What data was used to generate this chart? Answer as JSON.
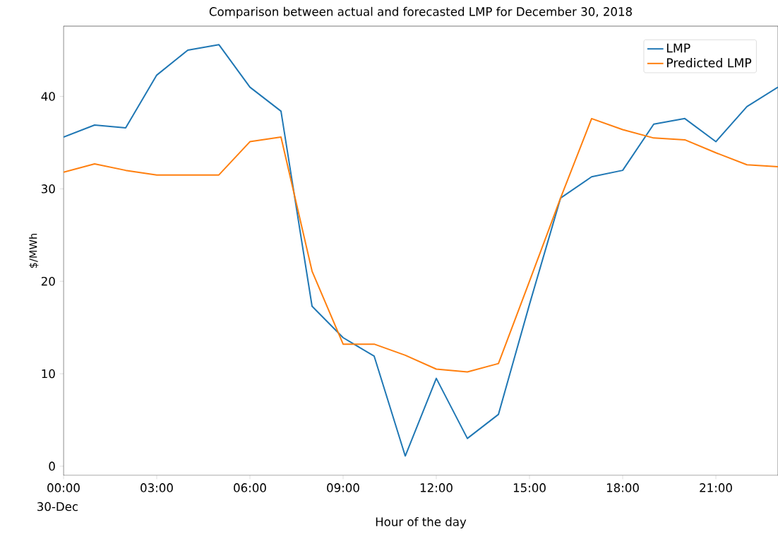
{
  "chart_data": {
    "type": "line",
    "title": "Comparison between actual and forecasted LMP for December 30, 2018",
    "xlabel": "Hour of the day",
    "ylabel": "$/MWh",
    "x": [
      0,
      1,
      2,
      3,
      4,
      5,
      6,
      7,
      8,
      9,
      10,
      11,
      12,
      13,
      14,
      15,
      16,
      17,
      18,
      19,
      20,
      21,
      22,
      23
    ],
    "series": [
      {
        "name": "LMP",
        "color": "#1f77b4",
        "values": [
          35.6,
          36.9,
          36.6,
          42.3,
          45.0,
          45.6,
          41.0,
          38.4,
          17.3,
          13.9,
          11.9,
          1.1,
          9.5,
          3.0,
          5.6,
          17.5,
          29.0,
          31.3,
          32.0,
          37.0,
          37.6,
          35.1,
          38.9,
          41.0
        ]
      },
      {
        "name": "Predicted LMP",
        "color": "#ff7f0e",
        "values": [
          31.8,
          32.7,
          32.0,
          31.5,
          31.5,
          31.5,
          35.1,
          35.6,
          21.1,
          13.2,
          13.2,
          12.0,
          10.5,
          10.2,
          11.1,
          20.0,
          29.0,
          37.6,
          36.4,
          35.5,
          35.3,
          33.9,
          32.6,
          32.4
        ]
      }
    ],
    "xlim": [
      0,
      23
    ],
    "ylim": [
      -1,
      47.6
    ],
    "xticks": [
      {
        "value": 0,
        "label": "00:00"
      },
      {
        "value": 3,
        "label": "03:00"
      },
      {
        "value": 6,
        "label": "06:00"
      },
      {
        "value": 9,
        "label": "09:00"
      },
      {
        "value": 12,
        "label": "12:00"
      },
      {
        "value": 15,
        "label": "15:00"
      },
      {
        "value": 18,
        "label": "18:00"
      },
      {
        "value": 21,
        "label": "21:00"
      }
    ],
    "yticks": [
      0,
      10,
      20,
      30,
      40
    ],
    "annotations": [
      "30-Dec"
    ],
    "legend": "top right",
    "grid": false
  }
}
